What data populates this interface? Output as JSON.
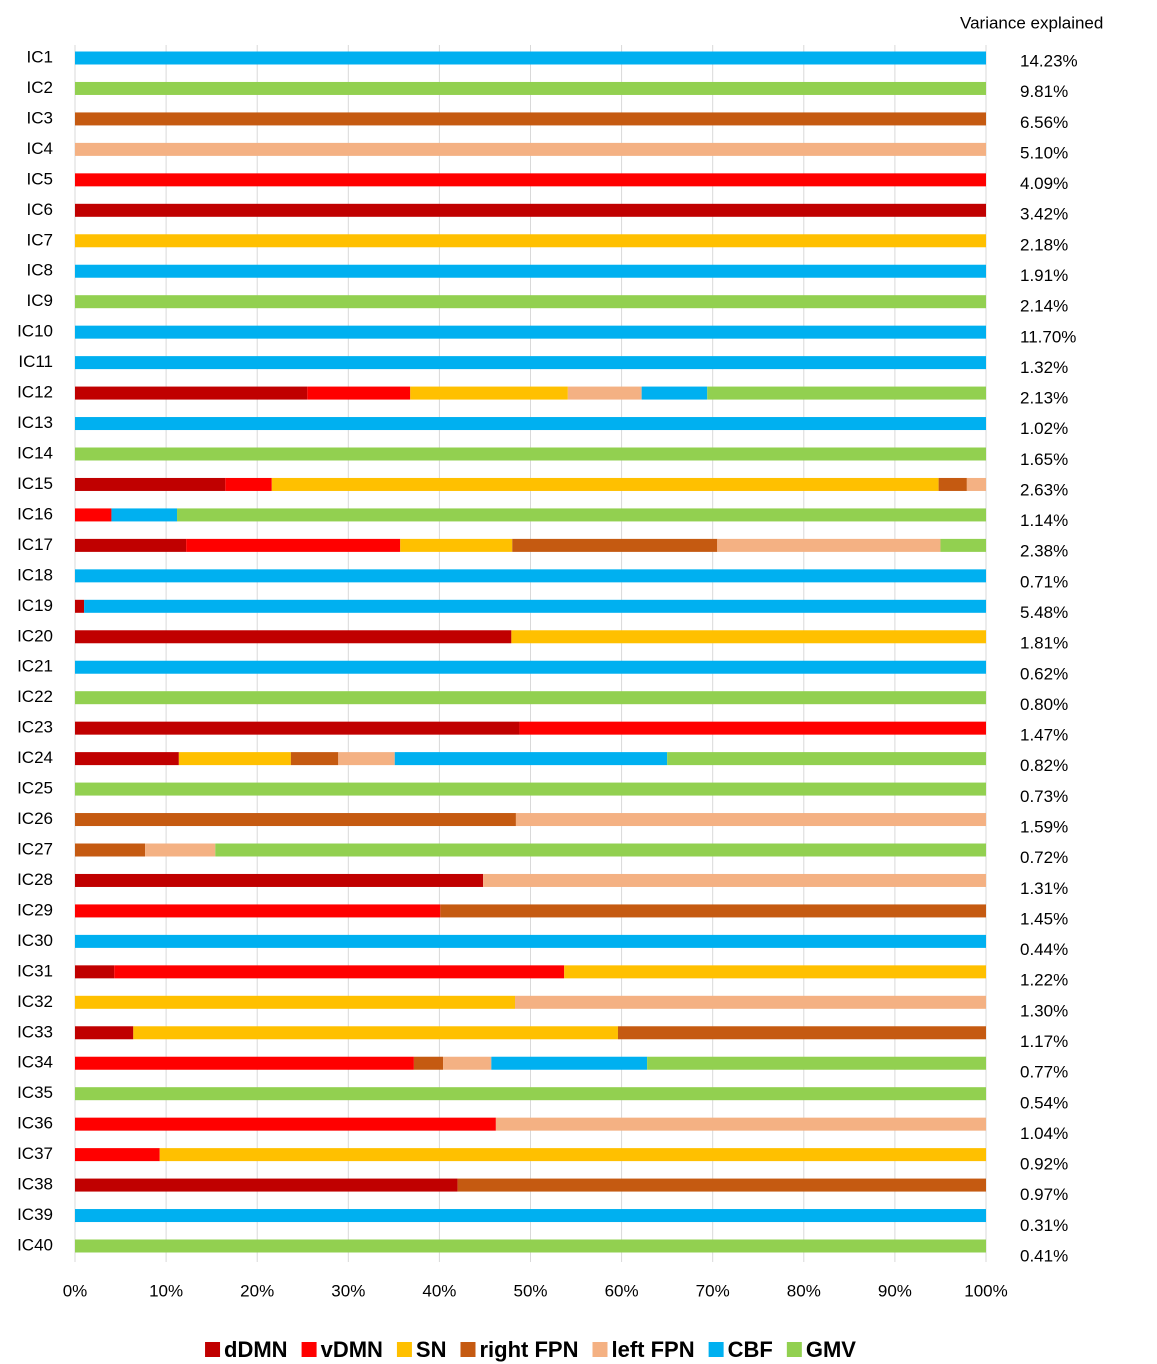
{
  "chart_data": {
    "type": "stacked_barh",
    "categories": [
      "IC1",
      "IC2",
      "IC3",
      "IC4",
      "IC5",
      "IC6",
      "IC7",
      "IC8",
      "IC9",
      "IC10",
      "IC11",
      "IC12",
      "IC13",
      "IC14",
      "IC15",
      "IC16",
      "IC17",
      "IC18",
      "IC19",
      "IC20",
      "IC21",
      "IC22",
      "IC23",
      "IC24",
      "IC25",
      "IC26",
      "IC27",
      "IC28",
      "IC29",
      "IC30",
      "IC31",
      "IC32",
      "IC33",
      "IC34",
      "IC35",
      "IC36",
      "IC37",
      "IC38",
      "IC39",
      "IC40"
    ],
    "series": [
      {
        "name": "dDMN",
        "color": "#c00000",
        "values": [
          0,
          0,
          0,
          0,
          0,
          100,
          0,
          0,
          0,
          0,
          0,
          25.5,
          0,
          0,
          16.5,
          0,
          12.2,
          0,
          1,
          47.9,
          0,
          0,
          48.8,
          11.4,
          0,
          0,
          0,
          44.8,
          0,
          0,
          4.3,
          0,
          6.4,
          0,
          0,
          0,
          0,
          42,
          0,
          0
        ]
      },
      {
        "name": "vDMN",
        "color": "#ff0000",
        "values": [
          0,
          0,
          0,
          0,
          100,
          0,
          0,
          0,
          0,
          0,
          0,
          11.3,
          0,
          0,
          5.1,
          4,
          23.5,
          0,
          0,
          0,
          0,
          0,
          51.2,
          0,
          0,
          0,
          0,
          0,
          40.1,
          0,
          49.4,
          0,
          0,
          37.2,
          0,
          46.2,
          9.3,
          0,
          0,
          0
        ]
      },
      {
        "name": "SN",
        "color": "#ffc000",
        "values": [
          0,
          0,
          0,
          0,
          0,
          0,
          100,
          0,
          0,
          0,
          0,
          17.3,
          0,
          0,
          73.2,
          0,
          12.3,
          0,
          0,
          52.1,
          0,
          0,
          0,
          12.3,
          0,
          0,
          0,
          0,
          0,
          0,
          46.3,
          48.3,
          53.2,
          0,
          0,
          0,
          90.7,
          0,
          0,
          0
        ]
      },
      {
        "name": "right FPN",
        "color": "#c55a11",
        "values": [
          0,
          0,
          100,
          0,
          0,
          0,
          0,
          0,
          0,
          0,
          0,
          0,
          0,
          0,
          3.1,
          0,
          22.5,
          0,
          0,
          0,
          0,
          0,
          0,
          5.2,
          0,
          48.4,
          7.7,
          0,
          59.9,
          0,
          0,
          0,
          40.4,
          3.2,
          0,
          0,
          0,
          58,
          0,
          0
        ]
      },
      {
        "name": "left FPN",
        "color": "#f4b183",
        "values": [
          0,
          0,
          0,
          100,
          0,
          0,
          0,
          0,
          0,
          0,
          0,
          8.1,
          0,
          0,
          2.1,
          0,
          24.5,
          0,
          0,
          0,
          0,
          0,
          0,
          6.2,
          0,
          51.6,
          7.7,
          55.2,
          0,
          0,
          0,
          51.7,
          0,
          5.3,
          0,
          53.8,
          0,
          0,
          0,
          0
        ]
      },
      {
        "name": "CBF",
        "color": "#00b0f0",
        "values": [
          100,
          0,
          0,
          0,
          0,
          0,
          0,
          100,
          0,
          100,
          100,
          7.2,
          100,
          0,
          0,
          7.2,
          0,
          100,
          99,
          0,
          100,
          0,
          0,
          29.9,
          0,
          0,
          0,
          0,
          0,
          100,
          0,
          0,
          0,
          17.1,
          0,
          0,
          0,
          0,
          100,
          0
        ]
      },
      {
        "name": "GMV",
        "color": "#92d050",
        "values": [
          0,
          100,
          0,
          0,
          0,
          0,
          0,
          0,
          100,
          0,
          0,
          30.6,
          0,
          100,
          0,
          88.8,
          5,
          0,
          0,
          0,
          0,
          100,
          0,
          35,
          100,
          0,
          84.6,
          0,
          0,
          0,
          0,
          0,
          0,
          37.2,
          100,
          0,
          0,
          0,
          0,
          100
        ]
      }
    ],
    "xlim": [
      0,
      100
    ],
    "xticks": [
      {
        "value": 0,
        "label": "0%"
      },
      {
        "value": 10,
        "label": "10%"
      },
      {
        "value": 20,
        "label": "20%"
      },
      {
        "value": 30,
        "label": "30%"
      },
      {
        "value": 40,
        "label": "40%"
      },
      {
        "value": 50,
        "label": "50%"
      },
      {
        "value": 60,
        "label": "60%"
      },
      {
        "value": 70,
        "label": "70%"
      },
      {
        "value": 80,
        "label": "80%"
      },
      {
        "value": 90,
        "label": "90%"
      },
      {
        "value": 100,
        "label": "100%"
      }
    ],
    "grid": true,
    "legend": "bottom",
    "variance_explained": {
      "title": "Variance explained",
      "values": [
        14.23,
        9.81,
        6.56,
        5.1,
        4.09,
        3.42,
        2.18,
        1.91,
        2.14,
        11.7,
        1.32,
        2.13,
        1.02,
        1.65,
        2.63,
        1.14,
        2.38,
        0.71,
        5.48,
        1.81,
        0.62,
        0.8,
        1.47,
        0.82,
        0.73,
        1.59,
        0.72,
        1.31,
        1.45,
        0.44,
        1.22,
        1.3,
        1.17,
        0.77,
        0.54,
        1.04,
        0.92,
        0.97,
        0.31,
        0.41
      ],
      "value_labels": [
        "14.23%",
        "9.81%",
        "6.56%",
        "5.10%",
        "4.09%",
        "3.42%",
        "2.18%",
        "1.91%",
        "2.14%",
        "11.70%",
        "1.32%",
        "2.13%",
        "1.02%",
        "1.65%",
        "2.63%",
        "1.14%",
        "2.38%",
        "0.71%",
        "5.48%",
        "1.81%",
        "0.62%",
        "0.80%",
        "1.47%",
        "0.82%",
        "0.73%",
        "1.59%",
        "0.72%",
        "1.31%",
        "1.45%",
        "0.44%",
        "1.22%",
        "1.30%",
        "1.17%",
        "0.77%",
        "0.54%",
        "1.04%",
        "0.92%",
        "0.97%",
        "0.31%",
        "0.41%"
      ]
    }
  }
}
